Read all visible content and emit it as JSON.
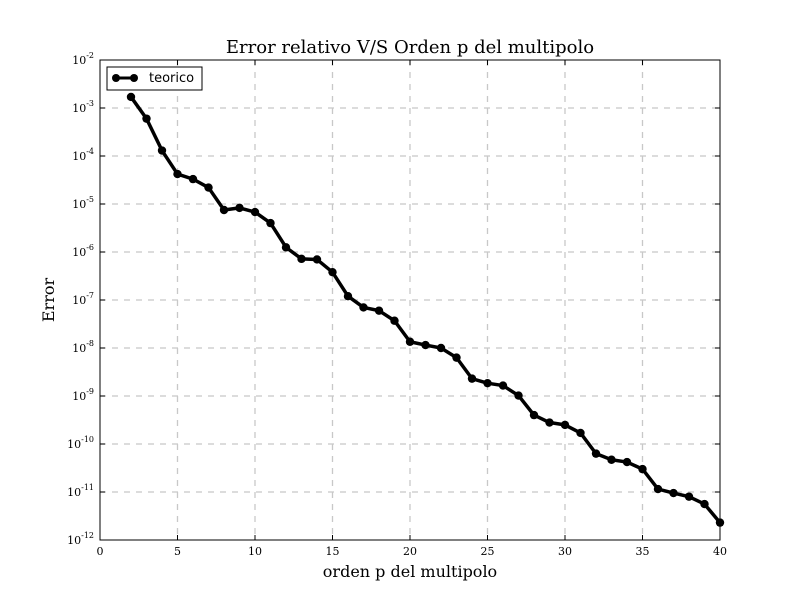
{
  "chart_data": {
    "type": "line",
    "title": "Error relativo V/S Orden p del multipolo",
    "xlabel": "orden p del multipolo",
    "ylabel": "Error",
    "xlim": [
      0,
      40
    ],
    "ylim_log10": [
      -12,
      -2
    ],
    "y_scale": "log",
    "grid": true,
    "legend_position": "top-left",
    "x_ticks": [
      "0",
      "5",
      "10",
      "15",
      "20",
      "25",
      "30",
      "35",
      "40"
    ],
    "y_ticks": [
      {
        "base": "10",
        "exp": "-12"
      },
      {
        "base": "10",
        "exp": "-11"
      },
      {
        "base": "10",
        "exp": "-10"
      },
      {
        "base": "10",
        "exp": "-9"
      },
      {
        "base": "10",
        "exp": "-8"
      },
      {
        "base": "10",
        "exp": "-7"
      },
      {
        "base": "10",
        "exp": "-6"
      },
      {
        "base": "10",
        "exp": "-5"
      },
      {
        "base": "10",
        "exp": "-4"
      },
      {
        "base": "10",
        "exp": "-3"
      },
      {
        "base": "10",
        "exp": "-2"
      }
    ],
    "series": [
      {
        "name": "teorico",
        "color": "#000000",
        "x": [
          2,
          3,
          4,
          5,
          6,
          7,
          8,
          9,
          10,
          11,
          12,
          13,
          14,
          15,
          16,
          17,
          18,
          19,
          20,
          21,
          22,
          23,
          24,
          25,
          26,
          27,
          28,
          29,
          30,
          31,
          32,
          33,
          34,
          35,
          36,
          37,
          38,
          39,
          40
        ],
        "y": [
          0.0017,
          0.0006,
          0.00013,
          4.2e-05,
          3.3e-05,
          2.2e-05,
          7.5e-06,
          8.3e-06,
          6.8e-06,
          4e-06,
          1.25e-06,
          7.2e-07,
          7e-07,
          3.8e-07,
          1.2e-07,
          7e-08,
          6e-08,
          3.7e-08,
          1.35e-08,
          1.15e-08,
          1e-08,
          6.3e-09,
          2.3e-09,
          1.85e-09,
          1.65e-09,
          1.02e-09,
          4e-10,
          2.8e-10,
          2.5e-10,
          1.7e-10,
          6.3e-11,
          4.7e-11,
          4.2e-11,
          3e-11,
          1.15e-11,
          9.5e-12,
          8e-12,
          5.6e-12,
          2.3e-12
        ]
      }
    ]
  }
}
